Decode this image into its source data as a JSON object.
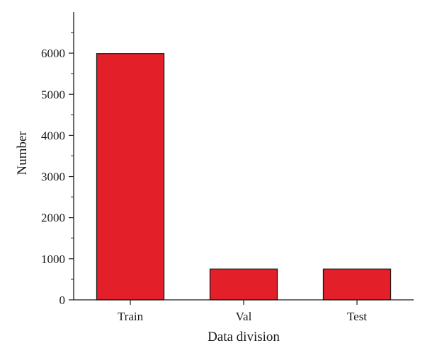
{
  "chart_data": {
    "type": "bar",
    "categories": [
      "Train",
      "Val",
      "Test"
    ],
    "values": [
      5990,
      750,
      750
    ],
    "title": "",
    "xlabel": "Data division",
    "ylabel": "Number",
    "ylim": [
      0,
      7000
    ],
    "yticks": [
      0,
      1000,
      2000,
      3000,
      4000,
      5000,
      6000
    ],
    "yticks_labels": [
      "0",
      "1000",
      "2000",
      "3000",
      "4000",
      "5000",
      "6000"
    ],
    "grid": false,
    "legend": "none",
    "colors": {
      "bar": "#e3202a",
      "bar_edge": "#1a1a1a",
      "axis": "#1a1a1a"
    }
  }
}
